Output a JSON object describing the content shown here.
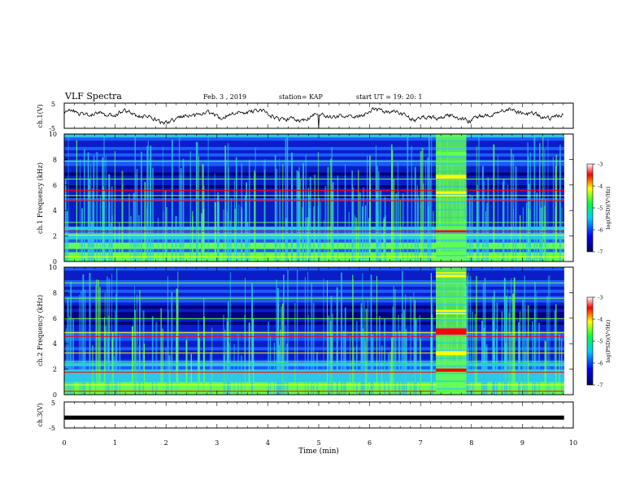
{
  "header": {
    "title": "VLF Spectra",
    "date": "Feb. 3 , 2019",
    "station": "station= KAP",
    "start": "start UT = 19: 20: 1"
  },
  "chart_data": [
    {
      "type": "line",
      "name": "ch1-waveform",
      "ylabel": "ch.1(V)",
      "ylim": [
        -5,
        5
      ],
      "yticks": [
        "5",
        "-5"
      ],
      "xlim": [
        0,
        10
      ]
    },
    {
      "type": "heatmap",
      "name": "ch1-spectrogram",
      "ylabel": "ch.1 Frequency (kHz)",
      "ylim": [
        0,
        10
      ],
      "yticks": [
        "0",
        "2",
        "4",
        "6",
        "8",
        "10"
      ],
      "xlim": [
        0,
        10
      ],
      "colorbar": {
        "label": "log(PSD)(V²/Hz)",
        "range": [
          -7,
          -3
        ],
        "ticks": [
          "-3",
          "-4",
          "-5",
          "-6",
          "-7"
        ]
      },
      "event_band_min": [
        7.3,
        7.9
      ]
    },
    {
      "type": "heatmap",
      "name": "ch2-spectrogram",
      "ylabel": "ch.2 Frequency (kHz)",
      "ylim": [
        0,
        10
      ],
      "yticks": [
        "0",
        "2",
        "4",
        "6",
        "8",
        "10"
      ],
      "xlim": [
        0,
        10
      ],
      "colorbar": {
        "label": "log(PSD)(V²/Hz)",
        "range": [
          -7,
          -3
        ],
        "ticks": [
          "-3",
          "-4",
          "-5",
          "-6",
          "-7"
        ]
      },
      "event_band_min": [
        7.3,
        7.9
      ]
    },
    {
      "type": "line",
      "name": "ch3-waveform",
      "ylabel": "ch.3(V)",
      "ylim": [
        -5,
        5
      ],
      "yticks": [
        "5",
        "-5"
      ],
      "xlim": [
        0,
        10
      ],
      "constant_level": -1
    }
  ],
  "xaxis": {
    "label": "Time (min)",
    "ticks": [
      "0",
      "1",
      "2",
      "3",
      "4",
      "5",
      "6",
      "7",
      "8",
      "9",
      "10"
    ]
  },
  "colors": {
    "deep": "#00007a",
    "navy": "#0a1ec8",
    "blue": "#1e5aff",
    "cyan": "#2cc8e6",
    "green": "#64ff50",
    "yellow": "#ffff00",
    "red": "#ff0000",
    "black": "#000000"
  }
}
